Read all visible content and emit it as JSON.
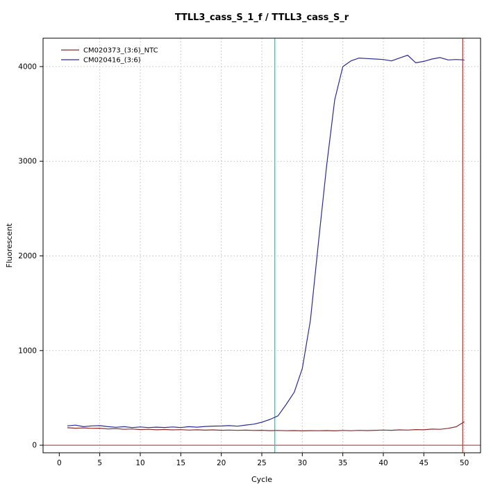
{
  "chart_data": {
    "type": "line",
    "title": "TTLL3_cass_S_1_f / TTLL3_cass_S_r",
    "xlabel": "Cycle",
    "ylabel": "Fluorescent",
    "xlim": [
      -2,
      52
    ],
    "ylim": [
      -80,
      4300
    ],
    "xticks": [
      0,
      5,
      10,
      15,
      20,
      25,
      30,
      35,
      40,
      45,
      50
    ],
    "yticks": [
      0,
      1000,
      2000,
      3000,
      4000
    ],
    "grid": {
      "on": true,
      "x_lines": [
        5,
        10,
        15,
        20,
        25,
        30,
        35,
        40,
        45,
        50
      ],
      "y_lines": [
        1000,
        2000,
        3000,
        4000
      ],
      "color": "#bfbfbf"
    },
    "x": [
      1,
      2,
      3,
      4,
      5,
      6,
      7,
      8,
      9,
      10,
      11,
      12,
      13,
      14,
      15,
      16,
      17,
      18,
      19,
      20,
      21,
      22,
      23,
      24,
      25,
      26,
      27,
      28,
      29,
      30,
      31,
      32,
      33,
      34,
      35,
      36,
      37,
      38,
      39,
      40,
      41,
      42,
      43,
      44,
      45,
      46,
      47,
      48,
      49,
      50
    ],
    "series": [
      {
        "name": "CM020373_(3:6)_NTC",
        "color": "#8b2a2a",
        "values": [
          185,
          180,
          183,
          178,
          180,
          172,
          175,
          168,
          172,
          165,
          168,
          163,
          166,
          162,
          164,
          160,
          163,
          159,
          162,
          158,
          160,
          157,
          159,
          156,
          158,
          154,
          156,
          153,
          155,
          152,
          154,
          153,
          155,
          152,
          156,
          153,
          157,
          155,
          158,
          160,
          158,
          162,
          160,
          165,
          163,
          170,
          168,
          178,
          195,
          248
        ]
      },
      {
        "name": "CM020416_(3:6)",
        "color": "#2a2a99",
        "values": [
          205,
          212,
          196,
          204,
          207,
          196,
          189,
          196,
          186,
          193,
          186,
          191,
          187,
          193,
          186,
          196,
          191,
          198,
          202,
          203,
          207,
          201,
          213,
          222,
          243,
          272,
          310,
          430,
          560,
          810,
          1320,
          2150,
          2950,
          3650,
          4000,
          4060,
          4090,
          4085,
          4080,
          4075,
          4060,
          4090,
          4120,
          4040,
          4055,
          4080,
          4095,
          4070,
          4075,
          4070
        ]
      }
    ],
    "vlines": [
      {
        "x": 26.6,
        "color": "#00dada",
        "name": "threshold-cycle-line"
      },
      {
        "x": 49.8,
        "color": "#b04a4a",
        "name": "end-cycle-line"
      }
    ],
    "hlines": [
      {
        "y": 0,
        "color": "#9b2d2d",
        "name": "baseline-zero-line"
      }
    ],
    "legend": {
      "position": "top-left",
      "entries": [
        "CM020373_(3:6)_NTC",
        "CM020416_(3:6)"
      ]
    }
  }
}
